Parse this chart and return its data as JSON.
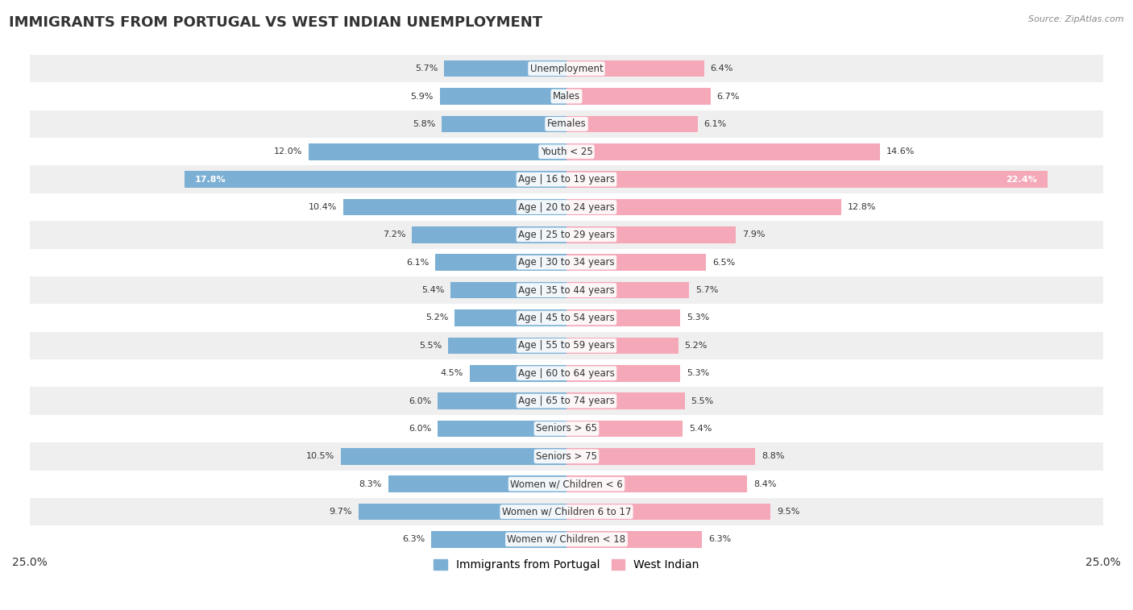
{
  "title": "IMMIGRANTS FROM PORTUGAL VS WEST INDIAN UNEMPLOYMENT",
  "source": "Source: ZipAtlas.com",
  "categories": [
    "Unemployment",
    "Males",
    "Females",
    "Youth < 25",
    "Age | 16 to 19 years",
    "Age | 20 to 24 years",
    "Age | 25 to 29 years",
    "Age | 30 to 34 years",
    "Age | 35 to 44 years",
    "Age | 45 to 54 years",
    "Age | 55 to 59 years",
    "Age | 60 to 64 years",
    "Age | 65 to 74 years",
    "Seniors > 65",
    "Seniors > 75",
    "Women w/ Children < 6",
    "Women w/ Children 6 to 17",
    "Women w/ Children < 18"
  ],
  "portugal_values": [
    5.7,
    5.9,
    5.8,
    12.0,
    17.8,
    10.4,
    7.2,
    6.1,
    5.4,
    5.2,
    5.5,
    4.5,
    6.0,
    6.0,
    10.5,
    8.3,
    9.7,
    6.3
  ],
  "westindian_values": [
    6.4,
    6.7,
    6.1,
    14.6,
    22.4,
    12.8,
    7.9,
    6.5,
    5.7,
    5.3,
    5.2,
    5.3,
    5.5,
    5.4,
    8.8,
    8.4,
    9.5,
    6.3
  ],
  "portugal_color": "#7bafd4",
  "westindian_color": "#f4a8b8",
  "portugal_label": "Immigrants from Portugal",
  "westindian_label": "West Indian",
  "xlim": 25.0,
  "bar_height": 0.6,
  "bg_color_odd": "#efefef",
  "bg_color_even": "#ffffff",
  "title_fontsize": 13,
  "label_fontsize": 8.5,
  "value_fontsize": 8.0,
  "value_inside_threshold": 15.0
}
